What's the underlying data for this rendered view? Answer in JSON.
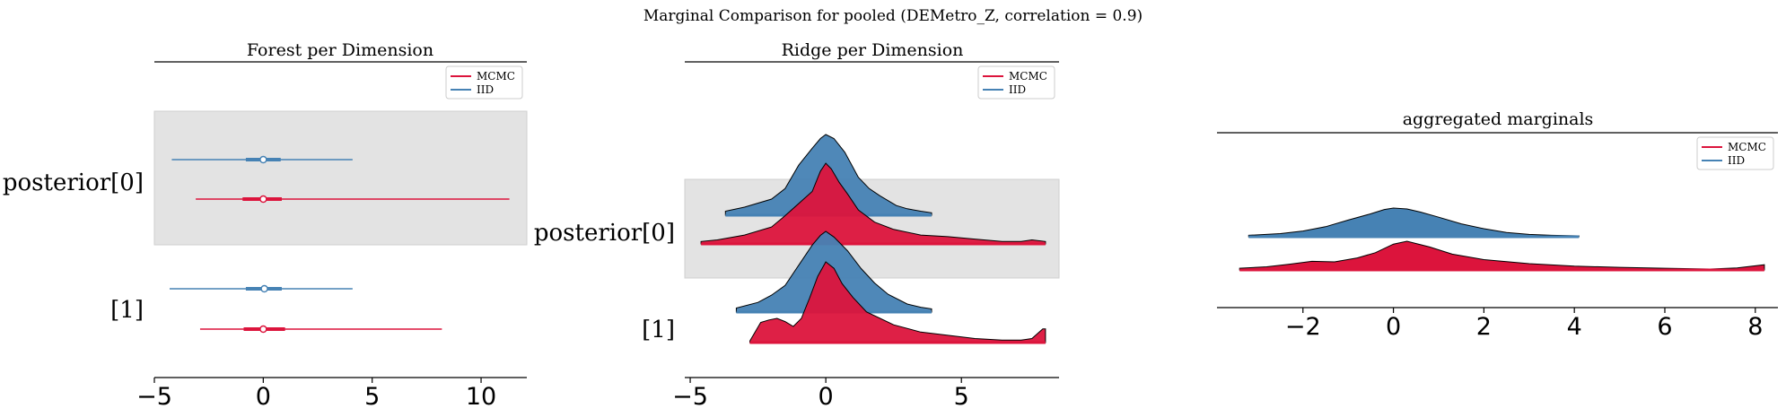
{
  "figure": {
    "suptitle": "Marginal Comparison for pooled (DEMetro_Z, correlation = 0.9)"
  },
  "colors": {
    "MCMC": "#dc143c",
    "IID": "#4682b4",
    "band": "#e3e3e3"
  },
  "chart_data": [
    {
      "type": "forest",
      "title": "Forest per Dimension",
      "xlabel": "",
      "ylabel": "",
      "xlim": [
        -5,
        12.1
      ],
      "xticks": [
        -5,
        0,
        5,
        10
      ],
      "xtick_labels": [
        "−5",
        "0",
        "5",
        "10"
      ],
      "ylabels": [
        "posterior[0]",
        "[1]"
      ],
      "legend": {
        "placement": "top-right",
        "entries": [
          "MCMC",
          "IID"
        ]
      },
      "series": [
        {
          "name": "IID",
          "rows": [
            {
              "label": "posterior[0]",
              "median": 0.0,
              "hdi50": [
                -0.8,
                0.8
              ],
              "range": [
                -4.2,
                4.1
              ]
            },
            {
              "label": "[1]",
              "median": 0.05,
              "hdi50": [
                -0.8,
                0.85
              ],
              "range": [
                -4.3,
                4.1
              ]
            }
          ]
        },
        {
          "name": "MCMC",
          "rows": [
            {
              "label": "posterior[0]",
              "median": 0.0,
              "hdi50": [
                -0.95,
                0.85
              ],
              "range": [
                -3.1,
                11.3
              ]
            },
            {
              "label": "[1]",
              "median": 0.0,
              "hdi50": [
                -0.9,
                1.0
              ],
              "range": [
                -2.9,
                8.2
              ]
            }
          ]
        }
      ]
    },
    {
      "type": "ridge",
      "title": "Ridge per Dimension",
      "xlabel": "",
      "ylabel": "",
      "xlim": [
        -5.2,
        8.6
      ],
      "xticks": [
        -5,
        0,
        5
      ],
      "xtick_labels": [
        "−5",
        "0",
        "5"
      ],
      "ylabels": [
        "posterior[0]",
        "[1]"
      ],
      "legend": {
        "placement": "top-right",
        "entries": [
          "MCMC",
          "IID"
        ]
      },
      "ridges": [
        {
          "label": "posterior[0]",
          "series": "IID",
          "x": [
            -3.7,
            -3,
            -2,
            -1.5,
            -1,
            -0.5,
            -0.2,
            0,
            0.3,
            0.7,
            1.2,
            1.6,
            2,
            2.6,
            3,
            3.5,
            3.9
          ],
          "y": [
            0.05,
            0.1,
            0.2,
            0.33,
            0.62,
            0.83,
            0.95,
            1.0,
            0.95,
            0.78,
            0.47,
            0.33,
            0.24,
            0.12,
            0.08,
            0.05,
            0.03
          ]
        },
        {
          "label": "posterior[0]",
          "series": "MCMC",
          "x": [
            -4.6,
            -4,
            -3,
            -2,
            -1.5,
            -1,
            -0.5,
            -0.2,
            0,
            0.2,
            0.5,
            0.8,
            1.2,
            1.8,
            2.5,
            3.5,
            4.5,
            5.5,
            6.5,
            7.2,
            7.6,
            8.1
          ],
          "y": [
            0.03,
            0.05,
            0.11,
            0.21,
            0.35,
            0.5,
            0.65,
            0.9,
            1.0,
            0.93,
            0.76,
            0.62,
            0.42,
            0.27,
            0.18,
            0.11,
            0.09,
            0.06,
            0.03,
            0.03,
            0.05,
            0.03
          ]
        },
        {
          "label": "[1]",
          "series": "IID",
          "x": [
            -3.3,
            -2.5,
            -2,
            -1.5,
            -1,
            -0.5,
            -0.2,
            0,
            0.3,
            0.8,
            1.3,
            1.8,
            2.3,
            3,
            3.5,
            3.9
          ],
          "y": [
            0.05,
            0.12,
            0.21,
            0.33,
            0.58,
            0.83,
            0.95,
            1.0,
            0.93,
            0.76,
            0.54,
            0.36,
            0.22,
            0.1,
            0.06,
            0.04
          ]
        },
        {
          "label": "[1]",
          "series": "MCMC",
          "x": [
            -2.8,
            -2.4,
            -2.1,
            -1.8,
            -1.5,
            -1.2,
            -0.9,
            -0.6,
            -0.3,
            0,
            0.3,
            0.6,
            1.0,
            1.5,
            2,
            2.5,
            3.5,
            4.5,
            5.5,
            6.5,
            7.2,
            7.6,
            8.0,
            8.1
          ],
          "y": [
            0.02,
            0.25,
            0.28,
            0.3,
            0.26,
            0.2,
            0.3,
            0.55,
            0.82,
            1.0,
            0.92,
            0.73,
            0.56,
            0.38,
            0.3,
            0.22,
            0.13,
            0.09,
            0.05,
            0.03,
            0.03,
            0.05,
            0.17,
            0.17
          ]
        }
      ]
    },
    {
      "type": "area",
      "title": "aggregated marginals",
      "xlabel": "",
      "ylabel": "",
      "xlim": [
        -3.9,
        8.5
      ],
      "xticks": [
        -2,
        0,
        2,
        4,
        6,
        8
      ],
      "xtick_labels": [
        "−2",
        "0",
        "2",
        "4",
        "6",
        "8"
      ],
      "legend": {
        "placement": "top-right",
        "entries": [
          "MCMC",
          "IID"
        ]
      },
      "series": [
        {
          "name": "IID",
          "x": [
            -3.2,
            -2.5,
            -2,
            -1.5,
            -1,
            -0.5,
            -0.2,
            0,
            0.3,
            0.6,
            1,
            1.5,
            2,
            2.5,
            3,
            3.5,
            4.1
          ],
          "y": [
            0.05,
            0.11,
            0.2,
            0.35,
            0.58,
            0.8,
            0.95,
            1.0,
            0.97,
            0.86,
            0.68,
            0.45,
            0.28,
            0.15,
            0.08,
            0.05,
            0.03
          ]
        },
        {
          "name": "MCMC",
          "x": [
            -3.4,
            -2.8,
            -2.3,
            -1.8,
            -1.3,
            -0.8,
            -0.4,
            0,
            0.3,
            0.8,
            1.3,
            2,
            3,
            4,
            5,
            6,
            7,
            7.6,
            8.2
          ],
          "y": [
            0.06,
            0.11,
            0.2,
            0.3,
            0.28,
            0.42,
            0.6,
            0.9,
            1.0,
            0.8,
            0.55,
            0.36,
            0.22,
            0.13,
            0.09,
            0.06,
            0.03,
            0.07,
            0.18
          ]
        }
      ]
    }
  ]
}
